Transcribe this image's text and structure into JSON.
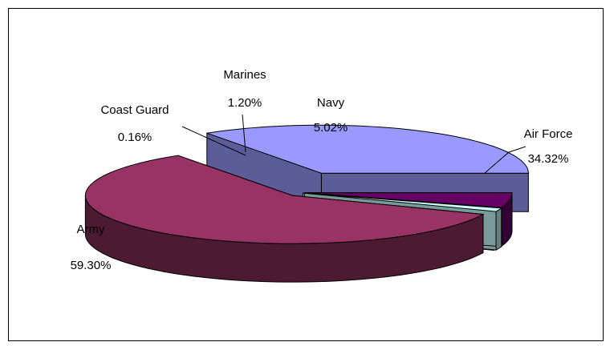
{
  "chart_data": {
    "type": "pie",
    "style": "3d-exploded",
    "title": "",
    "categories": [
      "Air Force",
      "Army",
      "Coast Guard",
      "Marines",
      "Navy"
    ],
    "values": [
      34.32,
      59.3,
      0.16,
      1.2,
      5.02
    ],
    "value_labels": [
      "34.32%",
      "59.30%",
      "0.16%",
      "1.20%",
      "5.02%"
    ],
    "colors": [
      "#9999FF",
      "#993366",
      "#FFFFCC",
      "#CCFFFF",
      "#660066"
    ],
    "legend": "none",
    "data_labels": true
  }
}
